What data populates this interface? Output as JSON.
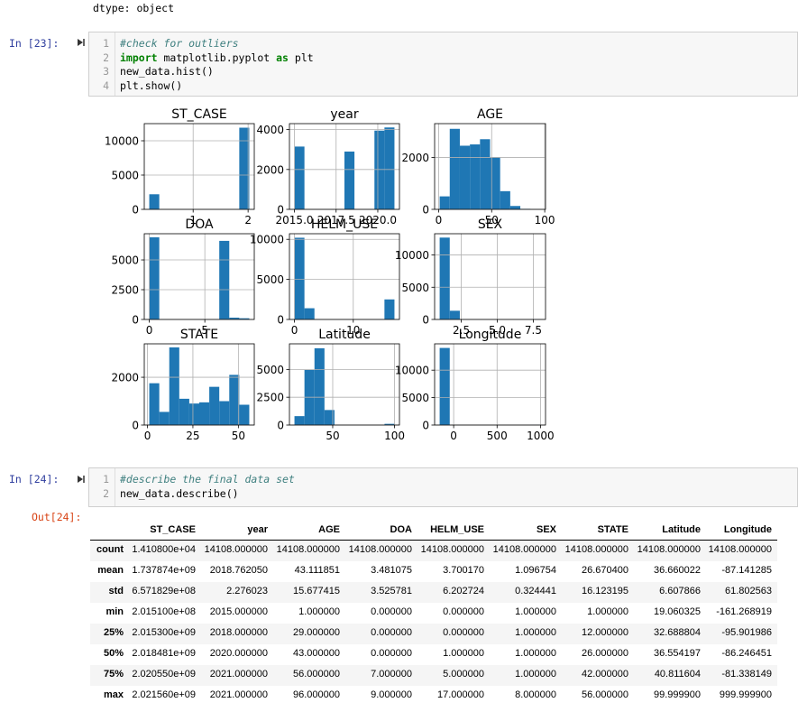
{
  "notebook": {
    "output_top": "dtype: object",
    "cells": [
      {
        "prompt": "In [23]:",
        "line_numbers": [
          1,
          2,
          3,
          4
        ],
        "lines": [
          [
            {
              "text": "#check for outliers",
              "style": "comment"
            }
          ],
          [
            {
              "text": "import",
              "style": "keyword"
            },
            {
              "text": " matplotlib.pyplot ",
              "style": "plain"
            },
            {
              "text": "as",
              "style": "keyword"
            },
            {
              "text": " plt",
              "style": "plain"
            }
          ],
          [
            {
              "text": "new_data.hist()",
              "style": "plain"
            }
          ],
          [
            {
              "text": "plt.show()",
              "style": "plain"
            }
          ]
        ]
      },
      {
        "prompt": "In [24]:",
        "line_numbers": [
          1,
          2
        ],
        "lines": [
          [
            {
              "text": "#describe the final data set",
              "style": "comment"
            }
          ],
          [
            {
              "text": "new_data.describe()",
              "style": "plain"
            }
          ]
        ]
      }
    ],
    "output_prompt": "Out[24]:",
    "table": {
      "columns": [
        "ST_CASE",
        "year",
        "AGE",
        "DOA",
        "HELM_USE",
        "SEX",
        "STATE",
        "Latitude",
        "Longitude"
      ],
      "index": [
        "count",
        "mean",
        "std",
        "min",
        "25%",
        "50%",
        "75%",
        "max"
      ],
      "rows": [
        [
          "1.410800e+04",
          "14108.000000",
          "14108.000000",
          "14108.000000",
          "14108.000000",
          "14108.000000",
          "14108.000000",
          "14108.000000",
          "14108.000000"
        ],
        [
          "1.737874e+09",
          "2018.762050",
          "43.111851",
          "3.481075",
          "3.700170",
          "1.096754",
          "26.670400",
          "36.660022",
          "-87.141285"
        ],
        [
          "6.571829e+08",
          "2.276023",
          "15.677415",
          "3.525781",
          "6.202724",
          "0.324441",
          "16.123195",
          "6.607866",
          "61.802563"
        ],
        [
          "2.015100e+08",
          "2015.000000",
          "1.000000",
          "0.000000",
          "0.000000",
          "1.000000",
          "1.000000",
          "19.060325",
          "-161.268919"
        ],
        [
          "2.015300e+09",
          "2018.000000",
          "29.000000",
          "0.000000",
          "0.000000",
          "1.000000",
          "12.000000",
          "32.688804",
          "-95.901986"
        ],
        [
          "2.018481e+09",
          "2020.000000",
          "43.000000",
          "0.000000",
          "1.000000",
          "1.000000",
          "26.000000",
          "36.554197",
          "-86.246451"
        ],
        [
          "2.020550e+09",
          "2021.000000",
          "56.000000",
          "7.000000",
          "5.000000",
          "1.000000",
          "42.000000",
          "40.811604",
          "-81.338149"
        ],
        [
          "2.021560e+09",
          "2021.000000",
          "96.000000",
          "9.000000",
          "17.000000",
          "8.000000",
          "56.000000",
          "99.999900",
          "999.999900"
        ]
      ]
    }
  },
  "chart_data": [
    {
      "type": "histogram",
      "title": "ST_CASE",
      "color": "#1f77b4",
      "grid": true,
      "bins": [
        201510000,
        383515000,
        565520000,
        747525000,
        929530000,
        1111535000,
        1293540000,
        1475545000,
        1657550000,
        1839555000,
        2021560000
      ],
      "values": [
        2200,
        0,
        0,
        0,
        0,
        0,
        0,
        0,
        0,
        11908
      ],
      "xlim": [
        110507500,
        2112562500
      ],
      "xticks": [
        {
          "value": 1000000000,
          "label": "1"
        },
        {
          "value": 2000000000,
          "label": "2"
        }
      ],
      "ylim": [
        0,
        12500
      ],
      "yticks": [
        0,
        5000,
        10000
      ]
    },
    {
      "type": "histogram",
      "title": "year",
      "color": "#1f77b4",
      "grid": true,
      "bins": [
        2015,
        2015.6,
        2016.2,
        2016.8,
        2017.4,
        2018,
        2018.6,
        2019.2,
        2019.8,
        2020.4,
        2021
      ],
      "values": [
        3150,
        0,
        0,
        0,
        0,
        2900,
        0,
        0,
        3950,
        4108
      ],
      "xlim": [
        2014.7,
        2021.3
      ],
      "xticks": [
        {
          "value": 2015,
          "label": "2015.0"
        },
        2017.5,
        {
          "value": 2020,
          "label": "2020.0"
        }
      ],
      "ylim": [
        0,
        4300
      ],
      "yticks": [
        0,
        2000,
        4000
      ]
    },
    {
      "type": "histogram",
      "title": "AGE",
      "color": "#1f77b4",
      "grid": true,
      "bins": [
        1,
        10.5,
        20,
        29.5,
        39,
        48.5,
        58,
        67.5,
        77,
        86.5,
        96
      ],
      "values": [
        500,
        3100,
        2450,
        2500,
        2700,
        2000,
        700,
        130,
        20,
        8
      ],
      "xlim": [
        -3.75,
        100.75
      ],
      "xticks": [
        0,
        50,
        100
      ],
      "ylim": [
        0,
        3300
      ],
      "yticks": [
        0,
        2000
      ]
    },
    {
      "type": "histogram",
      "title": "DOA",
      "color": "#1f77b4",
      "grid": true,
      "bins": [
        0,
        0.9,
        1.8,
        2.7,
        3.6,
        4.5,
        5.4,
        6.3,
        7.2,
        8.1,
        9
      ],
      "values": [
        6900,
        0,
        0,
        0,
        0,
        0,
        0,
        6600,
        150,
        100
      ],
      "xlim": [
        -0.45,
        9.45
      ],
      "xticks": [
        0,
        5
      ],
      "ylim": [
        0,
        7200
      ],
      "yticks": [
        0,
        2500,
        5000
      ]
    },
    {
      "type": "histogram",
      "title": "HELM_USE",
      "color": "#1f77b4",
      "grid": true,
      "bins": [
        0,
        1.7,
        3.4,
        5.1,
        6.8,
        8.5,
        10.2,
        11.9,
        13.6,
        15.3,
        17
      ],
      "values": [
        10200,
        1400,
        0,
        0,
        0,
        0,
        0,
        0,
        0,
        2500
      ],
      "xlim": [
        -0.85,
        17.85
      ],
      "xticks": [
        0,
        10
      ],
      "ylim": [
        0,
        10700
      ],
      "yticks": [
        0,
        5000,
        10000
      ]
    },
    {
      "type": "histogram",
      "title": "SEX",
      "color": "#1f77b4",
      "grid": true,
      "bins": [
        1,
        1.7,
        2.4,
        3.1,
        3.8,
        4.5,
        5.2,
        5.9,
        6.6,
        7.3,
        8
      ],
      "values": [
        12700,
        1350,
        0,
        0,
        0,
        0,
        0,
        0,
        0,
        58
      ],
      "xlim": [
        0.65,
        8.35
      ],
      "xticks": [
        2.5,
        {
          "value": 5,
          "label": "5.0"
        },
        7.5
      ],
      "ylim": [
        0,
        13300
      ],
      "yticks": [
        0,
        5000,
        10000
      ]
    },
    {
      "type": "histogram",
      "title": "STATE",
      "color": "#1f77b4",
      "grid": true,
      "bins": [
        1,
        6.5,
        12,
        17.5,
        23,
        28.5,
        34,
        39.5,
        45,
        50.5,
        56
      ],
      "values": [
        1750,
        550,
        3250,
        1100,
        900,
        950,
        1600,
        1000,
        2100,
        850
      ],
      "xlim": [
        -1.75,
        58.75
      ],
      "xticks": [
        0,
        25,
        50
      ],
      "ylim": [
        0,
        3400
      ],
      "yticks": [
        0,
        2000
      ]
    },
    {
      "type": "histogram",
      "title": "Latitude",
      "color": "#1f77b4",
      "grid": true,
      "bins": [
        19.06,
        27.15,
        35.25,
        43.34,
        51.44,
        59.53,
        67.62,
        75.72,
        83.81,
        91.91,
        100
      ],
      "values": [
        800,
        4950,
        6900,
        1350,
        0,
        0,
        0,
        0,
        0,
        108
      ],
      "xlim": [
        15,
        104
      ],
      "xticks": [
        50,
        100
      ],
      "ylim": [
        0,
        7300
      ],
      "yticks": [
        0,
        2500,
        5000
      ]
    },
    {
      "type": "histogram",
      "title": "Longitude",
      "color": "#1f77b4",
      "grid": true,
      "bins": [
        -161.27,
        -45.14,
        70.99,
        187.11,
        303.24,
        419.37,
        535.5,
        651.62,
        767.75,
        883.87,
        1000
      ],
      "values": [
        14050,
        0,
        0,
        0,
        0,
        0,
        0,
        0,
        0,
        58
      ],
      "xlim": [
        -219.3,
        1058.1
      ],
      "xticks": [
        0,
        500,
        1000
      ],
      "ylim": [
        0,
        14800
      ],
      "yticks": [
        0,
        5000,
        10000
      ]
    }
  ]
}
